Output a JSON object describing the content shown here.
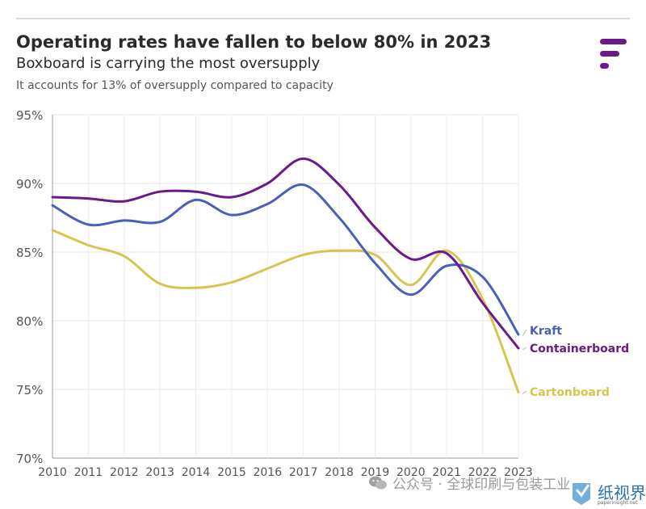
{
  "header": {
    "title": "Operating rates have fallen to below 80% in 2023",
    "subtitle": "Boxboard is carrying the most oversupply",
    "note": "It accounts for 13% of oversupply compared to capacity"
  },
  "logo_icon": "f-stripes-logo-icon",
  "watermark": {
    "text": "公众号 · 全球印刷与包装工业",
    "icon": "wechat-icon"
  },
  "brand": {
    "name": "纸视界",
    "url": "paperinsight.net",
    "color": "#2a6fa8"
  },
  "chart_data": {
    "type": "line",
    "x": [
      "2010",
      "2011",
      "2012",
      "2013",
      "2014",
      "2015",
      "2016",
      "2017",
      "2018",
      "2019",
      "2020",
      "2021",
      "2022",
      "2023"
    ],
    "ylim": [
      70,
      95
    ],
    "yticks": [
      "95%",
      "90%",
      "85%",
      "80%",
      "75%",
      "70%"
    ],
    "ytick_values": [
      95,
      90,
      85,
      80,
      75,
      70
    ],
    "grid": true,
    "legend": "end-of-line labels (right)",
    "series": [
      {
        "name": "Kraft",
        "color": "#4a5fb8",
        "values": [
          88.4,
          87.0,
          87.3,
          87.2,
          88.8,
          87.7,
          88.5,
          89.9,
          87.5,
          84.2,
          81.9,
          84.0,
          83.2,
          79.0
        ]
      },
      {
        "name": "Containerboard",
        "color": "#6b1a8c",
        "values": [
          89.0,
          88.9,
          88.7,
          89.4,
          89.4,
          89.0,
          90.0,
          91.8,
          89.9,
          86.8,
          84.5,
          84.9,
          81.3,
          78.0
        ]
      },
      {
        "name": "Cartonboard",
        "color": "#d6c54f",
        "values": [
          86.6,
          85.5,
          84.7,
          82.7,
          82.4,
          82.8,
          83.8,
          84.8,
          85.1,
          84.8,
          82.6,
          85.1,
          81.6,
          74.8
        ]
      }
    ]
  }
}
